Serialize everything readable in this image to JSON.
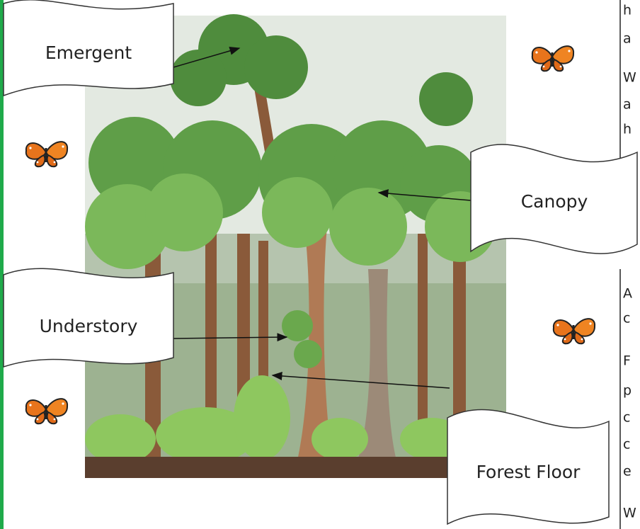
{
  "labels": {
    "emergent": "Emergent",
    "canopy": "Canopy",
    "understory": "Understory",
    "forest_floor": "Forest Floor"
  },
  "side_text": [
    "h",
    "a",
    "W",
    "a",
    "h",
    "A",
    "c",
    "F",
    "p",
    "c",
    "c",
    "e",
    "W"
  ]
}
